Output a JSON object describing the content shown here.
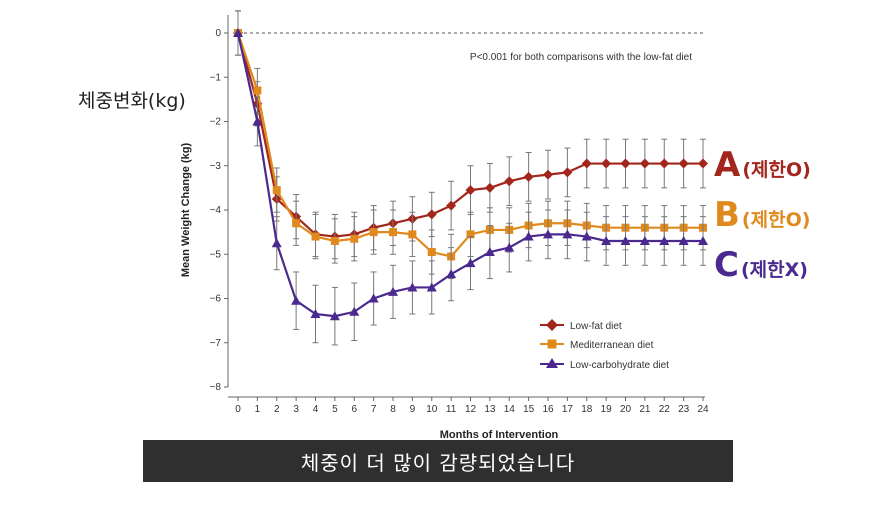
{
  "overlay": {
    "y_label": "체중변화(kg)",
    "caption": "체중이 더 많이 감량되었습니다",
    "series_tags": [
      {
        "letter": "A",
        "text": "(제한O)",
        "color": "#a3261d"
      },
      {
        "letter": "B",
        "text": "(제한O)",
        "color": "#e08a1e"
      },
      {
        "letter": "C",
        "text": "(제한X)",
        "color": "#4b2a8f"
      }
    ]
  },
  "chart_data": {
    "type": "line",
    "title": "",
    "annotation": "P<0.001 for both comparisons with the low-fat diet",
    "xlabel": "Months of Intervention",
    "ylabel": "Mean Weight Change (kg)",
    "xlim": [
      0,
      24
    ],
    "ylim": [
      -8,
      0
    ],
    "x_ticks": [
      0,
      1,
      2,
      3,
      4,
      5,
      6,
      7,
      8,
      9,
      10,
      11,
      12,
      13,
      14,
      15,
      16,
      17,
      18,
      19,
      20,
      21,
      22,
      23,
      24
    ],
    "y_ticks": [
      0,
      -1,
      -2,
      -3,
      -4,
      -5,
      -6,
      -7,
      -8
    ],
    "grid": false,
    "legend_position": "bottom-right",
    "x": [
      0,
      1,
      2,
      3,
      4,
      5,
      6,
      7,
      8,
      9,
      10,
      11,
      12,
      13,
      14,
      15,
      16,
      17,
      18,
      19,
      20,
      21,
      22,
      23,
      24
    ],
    "series": [
      {
        "name": "Low-fat diet",
        "color": "#a3261d",
        "marker": "diamond",
        "values": [
          0,
          -1.6,
          -3.75,
          -4.15,
          -4.55,
          -4.6,
          -4.55,
          -4.4,
          -4.3,
          -4.2,
          -4.1,
          -3.9,
          -3.55,
          -3.5,
          -3.35,
          -3.25,
          -3.2,
          -3.15,
          -2.95,
          -2.95,
          -2.95,
          -2.95,
          -2.95,
          -2.95,
          -2.95
        ],
        "errors": [
          0.5,
          0.5,
          0.5,
          0.5,
          0.5,
          0.5,
          0.5,
          0.5,
          0.5,
          0.5,
          0.5,
          0.55,
          0.55,
          0.55,
          0.55,
          0.55,
          0.55,
          0.55,
          0.55,
          0.55,
          0.55,
          0.55,
          0.55,
          0.55,
          0.55
        ]
      },
      {
        "name": "Mediterranean diet",
        "color": "#e08a1e",
        "marker": "square",
        "values": [
          0,
          -1.3,
          -3.55,
          -4.3,
          -4.6,
          -4.7,
          -4.65,
          -4.5,
          -4.5,
          -4.55,
          -4.95,
          -5.05,
          -4.55,
          -4.45,
          -4.45,
          -4.35,
          -4.3,
          -4.3,
          -4.35,
          -4.4,
          -4.4,
          -4.4,
          -4.4,
          -4.4,
          -4.4
        ],
        "errors": [
          0.5,
          0.5,
          0.5,
          0.5,
          0.5,
          0.5,
          0.5,
          0.5,
          0.5,
          0.5,
          0.5,
          0.5,
          0.5,
          0.5,
          0.5,
          0.5,
          0.5,
          0.5,
          0.5,
          0.5,
          0.5,
          0.5,
          0.5,
          0.5,
          0.5
        ]
      },
      {
        "name": "Low-carbohydrate diet",
        "color": "#4b2a8f",
        "marker": "triangle",
        "values": [
          0,
          -2.0,
          -4.75,
          -6.05,
          -6.35,
          -6.4,
          -6.3,
          -6.0,
          -5.85,
          -5.75,
          -5.75,
          -5.45,
          -5.2,
          -4.95,
          -4.85,
          -4.6,
          -4.55,
          -4.55,
          -4.6,
          -4.7,
          -4.7,
          -4.7,
          -4.7,
          -4.7,
          -4.7
        ],
        "errors": [
          0.5,
          0.55,
          0.6,
          0.65,
          0.65,
          0.65,
          0.65,
          0.6,
          0.6,
          0.6,
          0.6,
          0.6,
          0.6,
          0.6,
          0.55,
          0.55,
          0.55,
          0.55,
          0.55,
          0.55,
          0.55,
          0.55,
          0.55,
          0.55,
          0.55
        ]
      }
    ]
  }
}
